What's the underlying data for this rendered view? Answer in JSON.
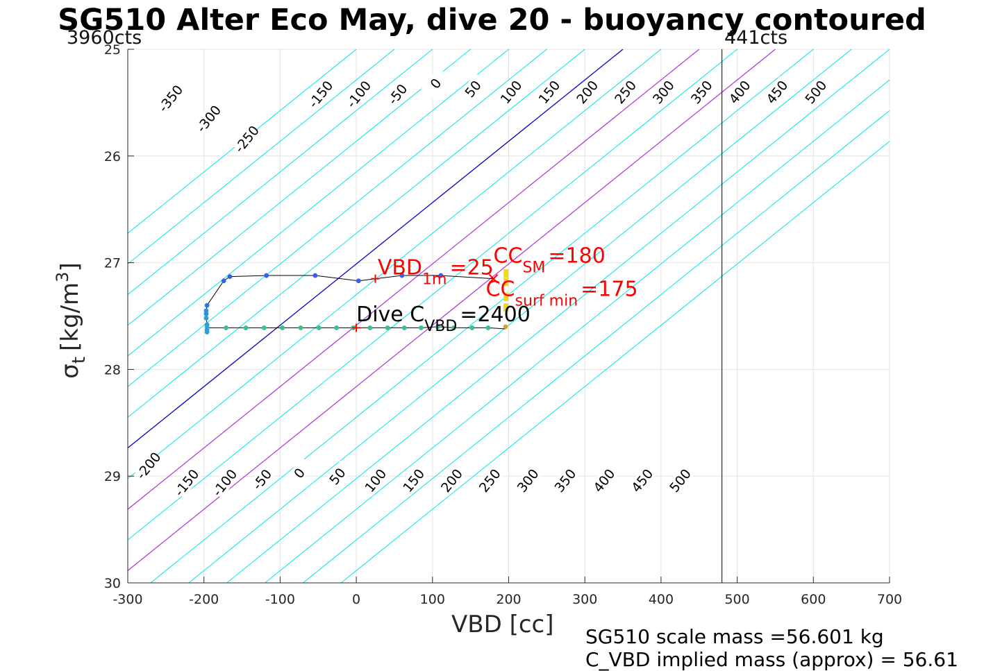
{
  "chart_data": {
    "type": "scatter",
    "title": "SG510 Alter Eco May, dive 20 - buoyancy contoured",
    "xlabel": "VBD [cc]",
    "ylabel_symbol": "σ",
    "ylabel_subscript": "t",
    "ylabel_unit": "[kg/m",
    "ylabel_unit_sup": "3",
    "ylabel_unit_close": "]",
    "xlim": [
      -300,
      700
    ],
    "ylim": [
      25,
      30
    ],
    "y_reversed": true,
    "grid": true,
    "xticks": [
      "-300",
      "-200",
      "-100",
      "0",
      "100",
      "200",
      "300",
      "400",
      "500",
      "600",
      "700"
    ],
    "yticks": [
      "25",
      "26",
      "27",
      "28",
      "29",
      "30"
    ],
    "xtick_values": [
      -300,
      -200,
      -100,
      0,
      100,
      200,
      300,
      400,
      500,
      600,
      700
    ],
    "ytick_values": [
      25,
      26,
      27,
      28,
      29,
      30
    ],
    "contours": {
      "levels": [
        -350,
        -300,
        -250,
        -200,
        -150,
        -100,
        -50,
        0,
        50,
        100,
        150,
        200,
        250,
        300,
        350,
        400,
        450,
        500
      ],
      "top_labels": [
        {
          "text": "-350",
          "x": -244,
          "y": 25.46
        },
        {
          "text": "-300",
          "x": -194,
          "y": 25.65
        },
        {
          "text": "-250",
          "x": -144,
          "y": 25.84
        },
        {
          "text": "-150",
          "x": -47,
          "y": 25.42
        },
        {
          "text": "-100",
          "x": 3,
          "y": 25.42
        },
        {
          "text": "-50",
          "x": 54,
          "y": 25.42
        },
        {
          "text": "0",
          "x": 104,
          "y": 25.32
        },
        {
          "text": "50",
          "x": 153,
          "y": 25.37
        },
        {
          "text": "100",
          "x": 203,
          "y": 25.4
        },
        {
          "text": "150",
          "x": 253,
          "y": 25.4
        },
        {
          "text": "200",
          "x": 303,
          "y": 25.4
        },
        {
          "text": "250",
          "x": 353,
          "y": 25.4
        },
        {
          "text": "300",
          "x": 403,
          "y": 25.4
        },
        {
          "text": "350",
          "x": 453,
          "y": 25.4
        },
        {
          "text": "400",
          "x": 503,
          "y": 25.4
        },
        {
          "text": "450",
          "x": 552,
          "y": 25.4
        },
        {
          "text": "500",
          "x": 603,
          "y": 25.4
        }
      ],
      "bottom_labels": [
        {
          "text": "-200",
          "x": -273,
          "y": 28.9
        },
        {
          "text": "-150",
          "x": -223,
          "y": 29.06
        },
        {
          "text": "-100",
          "x": -173,
          "y": 29.06
        },
        {
          "text": "-50",
          "x": -124,
          "y": 29.03
        },
        {
          "text": "0",
          "x": -75,
          "y": 28.97
        },
        {
          "text": "50",
          "x": -25,
          "y": 29.0
        },
        {
          "text": "100",
          "x": 25,
          "y": 29.04
        },
        {
          "text": "150",
          "x": 75,
          "y": 29.04
        },
        {
          "text": "200",
          "x": 125,
          "y": 29.04
        },
        {
          "text": "250",
          "x": 175,
          "y": 29.04
        },
        {
          "text": "300",
          "x": 225,
          "y": 29.04
        },
        {
          "text": "350",
          "x": 274,
          "y": 29.04
        },
        {
          "text": "400",
          "x": 325,
          "y": 29.04
        },
        {
          "text": "450",
          "x": 375,
          "y": 29.04
        },
        {
          "text": "500",
          "x": 425,
          "y": 29.04
        }
      ],
      "colors": {
        "normal": "#00e5e5",
        "zero": "#0000c8",
        "highlight": "#b030d8"
      }
    },
    "reference_line_x": 480,
    "dive_track": [
      {
        "x": 196,
        "y": 27.62
      },
      {
        "x": 173,
        "y": 27.61
      },
      {
        "x": 152,
        "y": 27.61
      },
      {
        "x": 128,
        "y": 27.61
      },
      {
        "x": 107,
        "y": 27.6
      },
      {
        "x": 85,
        "y": 27.61
      },
      {
        "x": 63,
        "y": 27.61
      },
      {
        "x": 41,
        "y": 27.61
      },
      {
        "x": 18,
        "y": 27.61
      },
      {
        "x": -4,
        "y": 27.61
      },
      {
        "x": -26,
        "y": 27.61
      },
      {
        "x": -49,
        "y": 27.61
      },
      {
        "x": -73,
        "y": 27.61
      },
      {
        "x": -97,
        "y": 27.61
      },
      {
        "x": -121,
        "y": 27.61
      },
      {
        "x": -145,
        "y": 27.61
      },
      {
        "x": -171,
        "y": 27.61
      },
      {
        "x": -196,
        "y": 27.61
      },
      {
        "x": -196,
        "y": 27.65
      },
      {
        "x": -196,
        "y": 27.58
      },
      {
        "x": -197,
        "y": 27.5
      },
      {
        "x": -197,
        "y": 27.45
      },
      {
        "x": -196,
        "y": 27.4
      },
      {
        "x": -174,
        "y": 27.17
      },
      {
        "x": -166,
        "y": 27.13
      },
      {
        "x": -118,
        "y": 27.12
      },
      {
        "x": -54,
        "y": 27.12
      },
      {
        "x": 3,
        "y": 27.17
      },
      {
        "x": 60,
        "y": 27.12
      },
      {
        "x": 111,
        "y": 27.12
      },
      {
        "x": 180,
        "y": 27.15
      }
    ],
    "dive_points": [
      {
        "x": 196,
        "y": 27.6,
        "color": "#e0a020"
      },
      {
        "x": 173,
        "y": 27.61,
        "color": "#3cc08a"
      },
      {
        "x": 152,
        "y": 27.61,
        "color": "#3cc08a"
      },
      {
        "x": 128,
        "y": 27.61,
        "color": "#3cc08a"
      },
      {
        "x": 107,
        "y": 27.6,
        "color": "#3cc08a"
      },
      {
        "x": 85,
        "y": 27.61,
        "color": "#3cc08a"
      },
      {
        "x": 63,
        "y": 27.61,
        "color": "#3cc08a"
      },
      {
        "x": 41,
        "y": 27.61,
        "color": "#3cc08a"
      },
      {
        "x": 18,
        "y": 27.61,
        "color": "#3cc08a"
      },
      {
        "x": -4,
        "y": 27.61,
        "color": "#3cc08a"
      },
      {
        "x": -26,
        "y": 27.61,
        "color": "#3cc08a"
      },
      {
        "x": -49,
        "y": 27.61,
        "color": "#3cc08a"
      },
      {
        "x": -73,
        "y": 27.61,
        "color": "#3cc08a"
      },
      {
        "x": -97,
        "y": 27.61,
        "color": "#3cc08a"
      },
      {
        "x": -121,
        "y": 27.61,
        "color": "#3cc08a"
      },
      {
        "x": -145,
        "y": 27.61,
        "color": "#3cc08a"
      },
      {
        "x": -171,
        "y": 27.61,
        "color": "#3cc08a"
      },
      {
        "x": -196,
        "y": 27.6,
        "color": "#2bb0c8"
      },
      {
        "x": -196,
        "y": 27.63,
        "color": "#2aa0d8"
      },
      {
        "x": -196,
        "y": 27.65,
        "color": "#2aa0d8"
      },
      {
        "x": -196,
        "y": 27.58,
        "color": "#2aa0d8"
      },
      {
        "x": -197,
        "y": 27.52,
        "color": "#2aa0d8"
      },
      {
        "x": -197,
        "y": 27.48,
        "color": "#2a90e0"
      },
      {
        "x": -197,
        "y": 27.45,
        "color": "#2a90e0"
      },
      {
        "x": -196,
        "y": 27.4,
        "color": "#3070e8"
      },
      {
        "x": -174,
        "y": 27.17,
        "color": "#3a60e8"
      },
      {
        "x": -166,
        "y": 27.13,
        "color": "#3a60e8"
      },
      {
        "x": -118,
        "y": 27.12,
        "color": "#3a60e8"
      },
      {
        "x": -54,
        "y": 27.12,
        "color": "#3a60e8"
      },
      {
        "x": 3,
        "y": 27.17,
        "color": "#3a60e8"
      },
      {
        "x": 60,
        "y": 27.12,
        "color": "#3a60e8"
      },
      {
        "x": 111,
        "y": 27.12,
        "color": "#3a60e8"
      }
    ],
    "red_markers": [
      {
        "x": 25,
        "y": 27.15,
        "symbol": "+"
      },
      {
        "x": 180,
        "y": 27.15,
        "symbol": "x"
      },
      {
        "x": 0,
        "y": 27.61,
        "symbol": "+"
      }
    ],
    "yellow_marks": [
      {
        "x": 196,
        "y": 27.1
      },
      {
        "x": 196,
        "y": 27.18
      },
      {
        "x": 196,
        "y": 27.32
      },
      {
        "x": 196,
        "y": 27.42
      }
    ],
    "annotations": {
      "vbd1m": {
        "main": "VBD",
        "sub": "1m",
        "value": "=25",
        "x": 28,
        "y": 27.11,
        "color": "#ff0000"
      },
      "ccsm": {
        "main": "CC",
        "sub": "SM",
        "value": "=180",
        "x": 180,
        "y": 27.0,
        "color": "#ff0000"
      },
      "ccsurf": {
        "main": "CC",
        "sub": "surf min",
        "value": "=175",
        "x": 170,
        "y": 27.31,
        "color": "#ff0000"
      },
      "divec": {
        "main": "Dive C",
        "sub": "VBD",
        "value": "=2400",
        "x": 0,
        "y": 27.55,
        "color": "#000000"
      }
    },
    "left_corner_label": "3960cts",
    "right_corner_label": "441cts",
    "footer_lines": [
      "SG510 scale mass =56.601 kg",
      "C_VBD implied mass (approx) = 56.61"
    ]
  }
}
